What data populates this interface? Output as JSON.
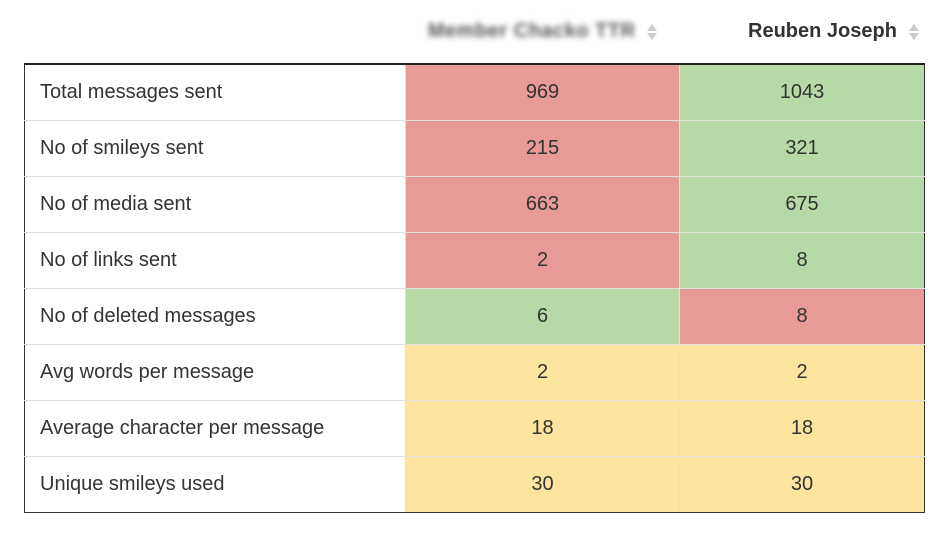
{
  "header": {
    "participant_1": "Member Chacko TTR",
    "participant_2": "Reuben Joseph"
  },
  "colors": {
    "worse": "#e89a98",
    "better": "#b7d9a8",
    "equal": "#fde49f",
    "label_bg": "#ffffff"
  },
  "rows": [
    {
      "label": "Total messages sent",
      "v1": "969",
      "v2": "1043",
      "s1": "worse",
      "s2": "better"
    },
    {
      "label": "No of smileys sent",
      "v1": "215",
      "v2": "321",
      "s1": "worse",
      "s2": "better"
    },
    {
      "label": "No of media sent",
      "v1": "663",
      "v2": "675",
      "s1": "worse",
      "s2": "better"
    },
    {
      "label": "No of links sent",
      "v1": "2",
      "v2": "8",
      "s1": "worse",
      "s2": "better"
    },
    {
      "label": "No of deleted messages",
      "v1": "6",
      "v2": "8",
      "s1": "better",
      "s2": "worse"
    },
    {
      "label": "Avg words per message",
      "v1": "2",
      "v2": "2",
      "s1": "equal",
      "s2": "equal"
    },
    {
      "label": "Average character per message",
      "v1": "18",
      "v2": "18",
      "s1": "equal",
      "s2": "equal"
    },
    {
      "label": "Unique smileys used",
      "v1": "30",
      "v2": "30",
      "s1": "equal",
      "s2": "equal"
    }
  ],
  "icons": {
    "sort": "sort-icon"
  }
}
